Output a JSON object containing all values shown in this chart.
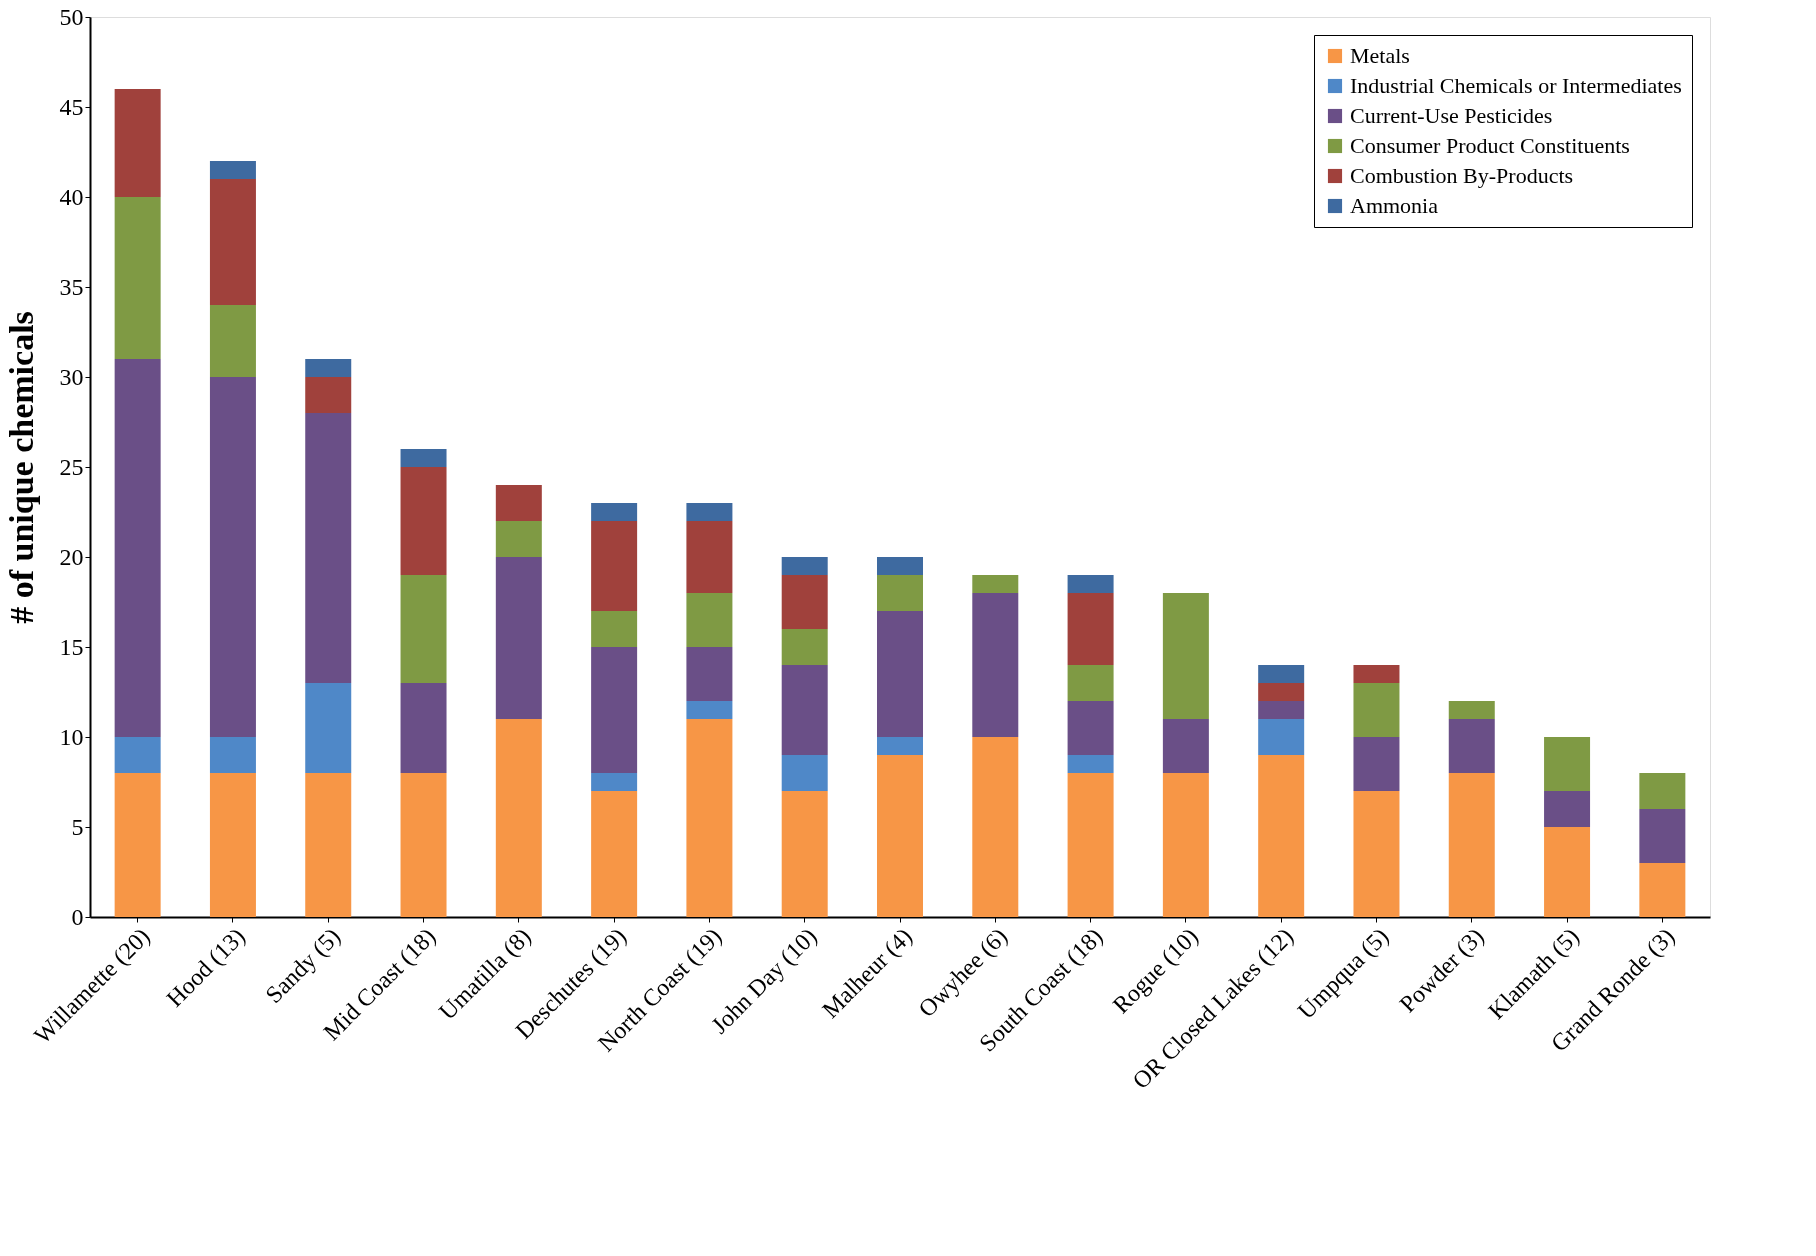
{
  "chart_data": {
    "type": "bar",
    "stacked": true,
    "ylabel": "# of unique chemicals",
    "categories": [
      "Willamette (20)",
      "Hood (13)",
      "Sandy (5)",
      "Mid Coast (18)",
      "Umatilla (8)",
      "Deschutes (19)",
      "North Coast (19)",
      "John Day (10)",
      "Malheur (4)",
      "Owyhee (6)",
      "South Coast (18)",
      "Rogue (10)",
      "OR Closed Lakes (12)",
      "Umpqua (5)",
      "Powder (3)",
      "Klamath (5)",
      "Grand Ronde (3)"
    ],
    "series": [
      {
        "name": "Metals",
        "color": "#f79646",
        "values": [
          8,
          8,
          8,
          8,
          11,
          7,
          11,
          7,
          9,
          10,
          8,
          8,
          9,
          7,
          8,
          5,
          3
        ]
      },
      {
        "name": "Industrial Chemicals or Intermediates",
        "color": "#4f88c8",
        "values": [
          2,
          2,
          5,
          0,
          0,
          1,
          1,
          2,
          1,
          0,
          1,
          0,
          2,
          0,
          0,
          0,
          0
        ]
      },
      {
        "name": "Current-Use Pesticides",
        "color": "#6a4f87",
        "values": [
          21,
          20,
          15,
          5,
          9,
          7,
          3,
          5,
          7,
          8,
          3,
          3,
          1,
          3,
          3,
          2,
          3
        ]
      },
      {
        "name": "Consumer Product Constituents",
        "color": "#7f9a44",
        "values": [
          9,
          4,
          0,
          6,
          2,
          2,
          3,
          2,
          2,
          1,
          2,
          7,
          0,
          3,
          1,
          3,
          2
        ]
      },
      {
        "name": "Combustion By-Products",
        "color": "#a0413c",
        "values": [
          6,
          7,
          2,
          6,
          2,
          5,
          4,
          3,
          0,
          0,
          4,
          0,
          1,
          1,
          0,
          0,
          0
        ]
      },
      {
        "name": "Ammonia",
        "color": "#3e6aa0",
        "values": [
          0,
          1,
          1,
          1,
          0,
          1,
          1,
          1,
          1,
          0,
          1,
          0,
          1,
          0,
          0,
          0,
          0
        ]
      }
    ],
    "ylim": [
      0,
      50
    ],
    "yticks": [
      0,
      5,
      10,
      15,
      20,
      25,
      30,
      35,
      40,
      45,
      50
    ],
    "grid": false,
    "legend": "top right"
  }
}
